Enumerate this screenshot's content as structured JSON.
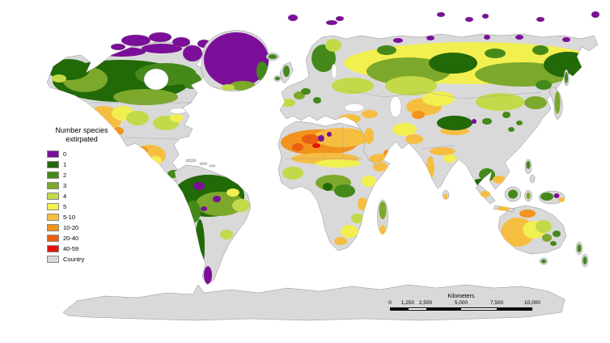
{
  "legend": {
    "title": "Number species\nextirpated",
    "items": [
      {
        "label": "0",
        "color": "#7b0f99"
      },
      {
        "label": "1",
        "color": "#226908"
      },
      {
        "label": "2",
        "color": "#44891a"
      },
      {
        "label": "3",
        "color": "#7ca82b"
      },
      {
        "label": "4",
        "color": "#c2d94a"
      },
      {
        "label": "5",
        "color": "#f2ef50"
      },
      {
        "label": "5-10",
        "color": "#f6be41"
      },
      {
        "label": "10-20",
        "color": "#f1931d"
      },
      {
        "label": "20-40",
        "color": "#ec5e0f"
      },
      {
        "label": "40-59",
        "color": "#e71309"
      },
      {
        "label": "Country",
        "color": "#d9d9d9"
      }
    ]
  },
  "scalebar": {
    "unit": "Kilometers",
    "ticks": [
      "0",
      "1,250",
      "2,500",
      "5,000",
      "7,500",
      "10,000"
    ]
  }
}
